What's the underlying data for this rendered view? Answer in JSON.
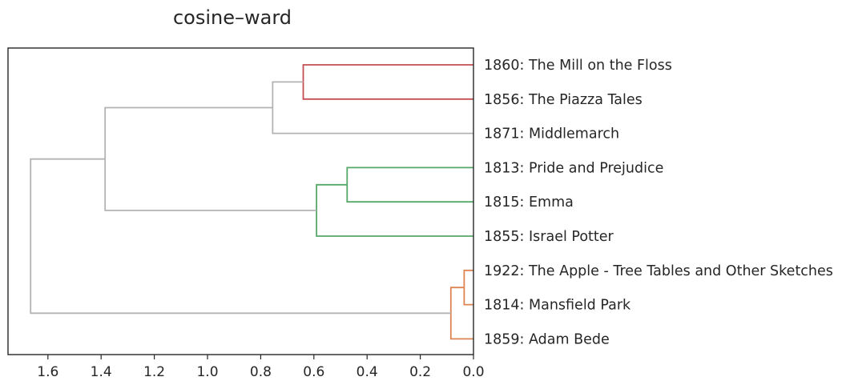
{
  "chart_data": {
    "type": "dendrogram",
    "title": "cosine–ward",
    "orientation": "left",
    "xlabel": "",
    "ylabel": "",
    "xlim": [
      1.75,
      0.0
    ],
    "x_ticks": [
      1.6,
      1.4,
      1.2,
      1.0,
      0.8,
      0.6,
      0.4,
      0.2,
      0.0
    ],
    "x_tick_labels": [
      "1.6",
      "1.4",
      "1.2",
      "1.0",
      "0.8",
      "0.6",
      "0.4",
      "0.2",
      "0.0"
    ],
    "grid": false,
    "colors": {
      "red": "#c44e52",
      "green": "#55a868",
      "orange": "#dd8452",
      "gray": "#b3b3b3",
      "axis": "#262626"
    },
    "leaves": [
      "1860: The Mill on the Floss",
      "1856: The Piazza Tales",
      "1871: Middlemarch",
      "1813: Pride and Prejudice",
      "1815: Emma",
      "1855: Israel Potter",
      "1922: The Apple - Tree Tables and Other Sketches",
      "1814: Mansfield Park",
      "1859: Adam Bede"
    ],
    "merges": [
      {
        "id": "A",
        "children": [
          0,
          1
        ],
        "height": 0.64,
        "color": "red"
      },
      {
        "id": "B",
        "children": [
          "A",
          2
        ],
        "height": 0.755,
        "color": "gray"
      },
      {
        "id": "C",
        "children": [
          3,
          4
        ],
        "height": 0.475,
        "color": "green"
      },
      {
        "id": "D",
        "children": [
          "C",
          5
        ],
        "height": 0.59,
        "color": "green"
      },
      {
        "id": "E",
        "children": [
          "B",
          "D"
        ],
        "height": 1.385,
        "color": "gray"
      },
      {
        "id": "F",
        "children": [
          6,
          7
        ],
        "height": 0.035,
        "color": "orange"
      },
      {
        "id": "G",
        "children": [
          "F",
          8
        ],
        "height": 0.085,
        "color": "orange"
      },
      {
        "id": "H",
        "children": [
          "E",
          "G"
        ],
        "height": 1.665,
        "color": "gray"
      }
    ]
  }
}
